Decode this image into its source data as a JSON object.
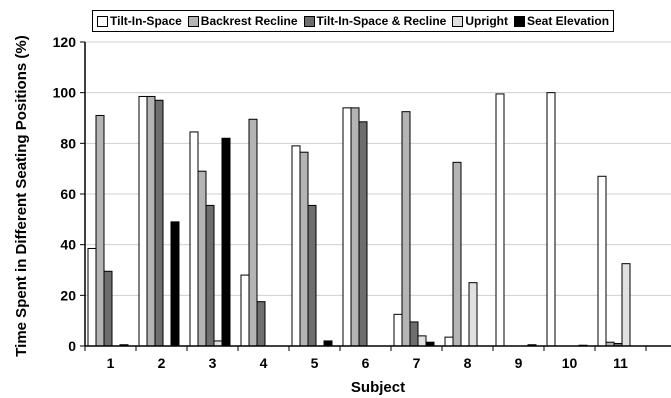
{
  "chart_data": {
    "type": "bar",
    "title": "",
    "xlabel": "Subject",
    "ylabel": "Time Spent in Different Seating Positions (%)",
    "ylim": [
      0,
      120
    ],
    "yticks": [
      "0",
      "20",
      "40",
      "60",
      "80",
      "100",
      "120"
    ],
    "grid": "horizontal",
    "legend_position": "top",
    "categories": [
      "1",
      "2",
      "3",
      "4",
      "5",
      "6",
      "7",
      "8",
      "9",
      "10",
      "11"
    ],
    "series": [
      {
        "name": "Tilt-In-Space",
        "color": "#ffffff",
        "values": [
          38.5,
          98.5,
          84.5,
          28,
          79,
          94,
          12.5,
          3.5,
          99.5,
          100,
          67
        ]
      },
      {
        "name": "Backrest Recline",
        "color": "#b4b4b4",
        "values": [
          91,
          98.5,
          69,
          89.5,
          76.5,
          94,
          92.5,
          72.5,
          0,
          0,
          1.5
        ]
      },
      {
        "name": "Tilt-In-Space & Recline",
        "color": "#6e6e6e",
        "values": [
          29.5,
          97,
          55.5,
          17.5,
          55.5,
          88.5,
          9.5,
          0,
          0,
          0,
          1
        ]
      },
      {
        "name": "Upright",
        "color": "#e0e0e0",
        "values": [
          0,
          0,
          2,
          0,
          0,
          0,
          4,
          25,
          0,
          0,
          32.5
        ]
      },
      {
        "name": "Seat Elevation",
        "color": "#000000",
        "values": [
          0.5,
          49,
          82,
          0,
          2,
          0,
          1.5,
          0,
          0.5,
          0.3,
          0
        ]
      }
    ]
  }
}
